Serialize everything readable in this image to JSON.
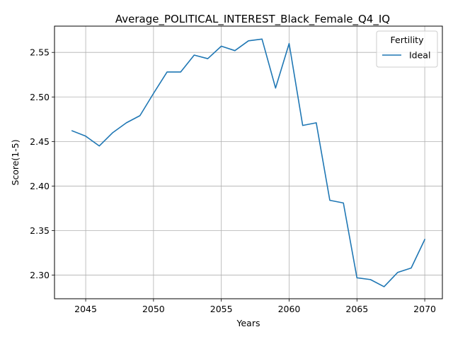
{
  "chart_data": {
    "type": "line",
    "title": "Average_POLITICAL_INTEREST_Black_Female_Q4_IQ",
    "xlabel": "Years",
    "ylabel": "Score(1-5)",
    "xlim": [
      2042.7,
      2071.3
    ],
    "ylim": [
      2.2735,
      2.5795
    ],
    "xticks": [
      2045,
      2050,
      2055,
      2060,
      2065,
      2070
    ],
    "yticks": [
      2.3,
      2.35,
      2.4,
      2.45,
      2.5,
      2.55
    ],
    "xtick_labels": [
      "2045",
      "2050",
      "2055",
      "2060",
      "2065",
      "2070"
    ],
    "ytick_labels": [
      "2.30",
      "2.35",
      "2.40",
      "2.45",
      "2.50",
      "2.55"
    ],
    "grid": true,
    "legend": {
      "title": "Fertility",
      "placement": "top-right"
    },
    "series": [
      {
        "name": "Ideal",
        "color": "#1f77b4",
        "x": [
          2044,
          2045,
          2046,
          2047,
          2048,
          2049,
          2050,
          2051,
          2052,
          2053,
          2054,
          2055,
          2056,
          2057,
          2058,
          2059,
          2060,
          2061,
          2062,
          2063,
          2064,
          2065,
          2066,
          2067,
          2068,
          2069,
          2070
        ],
        "y": [
          2.462,
          2.456,
          2.445,
          2.46,
          2.471,
          2.479,
          2.504,
          2.528,
          2.528,
          2.547,
          2.543,
          2.557,
          2.552,
          2.563,
          2.565,
          2.51,
          2.56,
          2.468,
          2.471,
          2.384,
          2.381,
          2.297,
          2.295,
          2.287,
          2.303,
          2.308,
          2.34
        ]
      }
    ]
  },
  "colors": {
    "axis": "#000000",
    "grid": "#b0b0b0",
    "legend_border": "#cccccc"
  }
}
